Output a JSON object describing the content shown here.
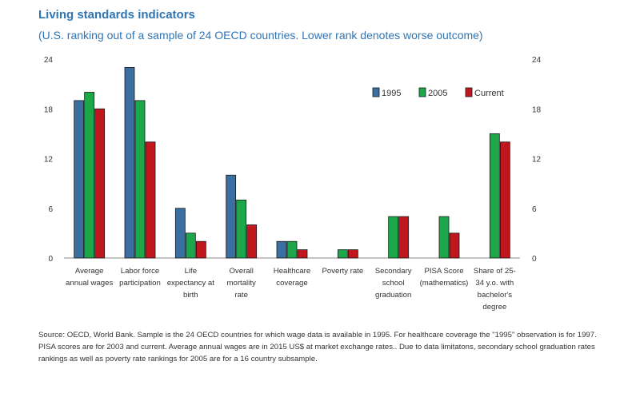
{
  "title": "Living standards indicators",
  "subtitle": "(U.S. ranking out of a sample of 24 OECD countries. Lower rank denotes worse outcome)",
  "source": "Source: OECD, World Bank. Sample is the 24 OECD countries for which wage data is available in 1995. For healthcare coverage the \"1995\" observation is for 1997. PISA scores are for 2003 and current. Average annual wages are in 2015 US$ at market exchange rates.. Due to data limitatons, secondary school graduation rates rankings as well as poverty rate rankings for 2005 are for a 16 country subsample.",
  "chart_data": {
    "type": "bar",
    "title": "Living standards indicators",
    "xlabel": "",
    "ylabel": "",
    "ylim": [
      0,
      24
    ],
    "yticks": [
      0,
      6,
      12,
      18,
      24
    ],
    "legend_position": "top-right",
    "categories": [
      [
        "Average",
        "annual wages"
      ],
      [
        "Labor force",
        "participation"
      ],
      [
        "Life",
        "expectancy at",
        "birth"
      ],
      [
        "Overall",
        "mortality",
        "rate"
      ],
      [
        "Healthcare",
        "coverage"
      ],
      [
        "Poverty rate"
      ],
      [
        "Secondary",
        "school",
        "graduation"
      ],
      [
        "PISA Score",
        "(mathematics)"
      ],
      [
        "Share of 25-",
        "34 y.o. with",
        "bachelor's",
        "degree"
      ]
    ],
    "series": [
      {
        "name": "1995",
        "color": "#3a6fa0",
        "values": [
          19,
          23,
          6,
          10,
          2,
          null,
          null,
          null,
          null
        ]
      },
      {
        "name": "2005",
        "color": "#1ca84a",
        "values": [
          20,
          19,
          3,
          7,
          2,
          1,
          5,
          5,
          15
        ]
      },
      {
        "name": "Current",
        "color": "#c0161e",
        "values": [
          18,
          14,
          2,
          4,
          1,
          1,
          5,
          3,
          14
        ]
      }
    ]
  }
}
